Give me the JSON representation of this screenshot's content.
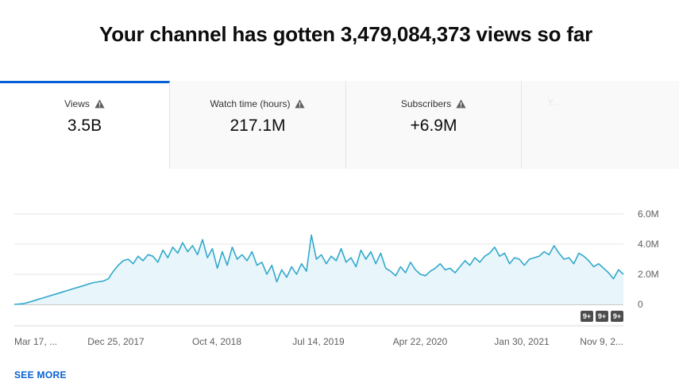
{
  "headline": "Your channel has gotten 3,479,084,373 views so far",
  "tabs": [
    {
      "label": "Views",
      "value": "3.5B",
      "warning_icon": "warning-icon",
      "active": true
    },
    {
      "label": "Watch time (hours)",
      "value": "217.1M",
      "warning_icon": "warning-icon"
    },
    {
      "label": "Subscribers",
      "value": "+6.9M",
      "warning_icon": "warning-icon"
    },
    {
      "label": "Y...",
      "value": ""
    }
  ],
  "colors": {
    "accent_tab_border": "#065fd4",
    "series_line": "#32a8cb",
    "series_fill": "#e8f6fb",
    "link": "#065fd4",
    "badge": "#4d4d4d"
  },
  "see_more_label": "SEE MORE",
  "chart_data": {
    "type": "area",
    "title": "",
    "xlabel": "",
    "ylabel": "",
    "x_tick_labels": [
      "Mar 17, ...",
      "Dec 25, 2017",
      "Oct 4, 2018",
      "Jul 14, 2019",
      "Apr 22, 2020",
      "Jan 30, 2021",
      "Nov 9, 2..."
    ],
    "y_tick_labels": [
      "6.0M",
      "4.0M",
      "2.0M",
      "0"
    ],
    "ylim": [
      0,
      6000000
    ],
    "y_ticks": [
      0,
      2000000,
      4000000,
      6000000
    ],
    "y_axis_position": "right",
    "grid": true,
    "badges": [
      "9+",
      "9+",
      "9+"
    ],
    "series": [
      {
        "values": [
          0,
          20000,
          60000,
          150000,
          250000,
          350000,
          450000,
          550000,
          650000,
          750000,
          850000,
          950000,
          1050000,
          1150000,
          1250000,
          1350000,
          1450000,
          1500000,
          1550000,
          1700000,
          2200000,
          2600000,
          2900000,
          3000000,
          2700000,
          3200000,
          2900000,
          3300000,
          3200000,
          2800000,
          3600000,
          3100000,
          3800000,
          3400000,
          4100000,
          3500000,
          3900000,
          3300000,
          4300000,
          3100000,
          3700000,
          2400000,
          3500000,
          2600000,
          3800000,
          3000000,
          3300000,
          2900000,
          3500000,
          2600000,
          2800000,
          2000000,
          2600000,
          1500000,
          2300000,
          1800000,
          2500000,
          2000000,
          2700000,
          2200000,
          4600000,
          3000000,
          3300000,
          2700000,
          3200000,
          2900000,
          3700000,
          2800000,
          3100000,
          2500000,
          3600000,
          3000000,
          3500000,
          2700000,
          3400000,
          2400000,
          2200000,
          1900000,
          2500000,
          2100000,
          2800000,
          2300000,
          2000000,
          1900000,
          2200000,
          2400000,
          2700000,
          2300000,
          2400000,
          2100000,
          2500000,
          2900000,
          2600000,
          3100000,
          2800000,
          3200000,
          3400000,
          3800000,
          3200000,
          3400000,
          2700000,
          3100000,
          3000000,
          2600000,
          3000000,
          3100000,
          3200000,
          3500000,
          3300000,
          3900000,
          3400000,
          3000000,
          3100000,
          2700000,
          3400000,
          3200000,
          2900000,
          2500000,
          2700000,
          2400000,
          2100000,
          1700000,
          2300000,
          2000000
        ]
      }
    ]
  }
}
